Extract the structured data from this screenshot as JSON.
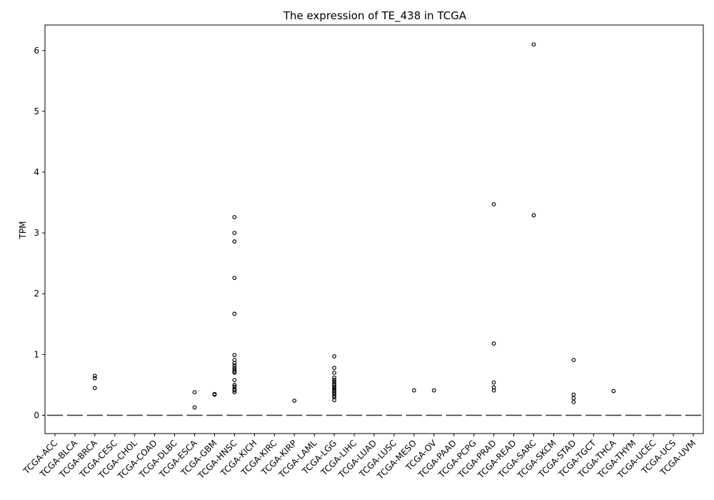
{
  "chart_data": {
    "type": "box",
    "title": "The expression of TE_438 in TCGA",
    "xlabel": "",
    "ylabel": "TPM",
    "ylim": [
      -0.3,
      6.42
    ],
    "yticks": [
      0,
      1,
      2,
      3,
      4,
      5,
      6
    ],
    "categories": [
      "TCGA-ACC",
      "TCGA-BLCA",
      "TCGA-BRCA",
      "TCGA-CESC",
      "TCGA-CHOL",
      "TCGA-COAD",
      "TCGA-DLBC",
      "TCGA-ESCA",
      "TCGA-GBM",
      "TCGA-HNSC",
      "TCGA-KICH",
      "TCGA-KIRC",
      "TCGA-KIRP",
      "TCGA-LAML",
      "TCGA-LGG",
      "TCGA-LIHC",
      "TCGA-LUAD",
      "TCGA-LUSC",
      "TCGA-MESO",
      "TCGA-OV",
      "TCGA-PAAD",
      "TCGA-PCPG",
      "TCGA-PRAD",
      "TCGA-READ",
      "TCGA-SARC",
      "TCGA-SKCM",
      "TCGA-STAD",
      "TCGA-TGCT",
      "TCGA-THCA",
      "TCGA-THYM",
      "TCGA-UCEC",
      "TCGA-UCS",
      "TCGA-UVM"
    ],
    "median": [
      0,
      0,
      0,
      0,
      0,
      0,
      0,
      0,
      0,
      0,
      0,
      0,
      0,
      0,
      0,
      0,
      0,
      0,
      0,
      0,
      0,
      0,
      0,
      0,
      0,
      0,
      0,
      0,
      0,
      0,
      0,
      0,
      0
    ],
    "outliers": [
      [],
      [],
      [
        0.65,
        0.61,
        0.45
      ],
      [],
      [],
      [],
      [],
      [
        0.38,
        0.13
      ],
      [
        0.35,
        0.34
      ],
      [
        3.26,
        3.0,
        2.86,
        2.26,
        1.67,
        0.99,
        0.91,
        0.86,
        0.82,
        0.78,
        0.75,
        0.72,
        0.7,
        0.58,
        0.5,
        0.47,
        0.43,
        0.41,
        0.38
      ],
      [],
      [],
      [
        0.24
      ],
      [],
      [
        0.97,
        0.78,
        0.7,
        0.62,
        0.58,
        0.55,
        0.52,
        0.5,
        0.47,
        0.45,
        0.43,
        0.41,
        0.38,
        0.35,
        0.32,
        0.3,
        0.25
      ],
      [],
      [],
      [],
      [
        0.41
      ],
      [
        0.41
      ],
      [],
      [],
      [
        3.47,
        1.18,
        0.54,
        0.46,
        0.41
      ],
      [],
      [
        6.1,
        3.29
      ],
      [],
      [
        0.91,
        0.34,
        0.28,
        0.22
      ],
      [],
      [
        0.4
      ],
      [],
      [],
      [],
      []
    ],
    "grid": false,
    "legend": "none",
    "colors": {
      "box_line": "#3d3d3d",
      "outlier_edge": "#000000",
      "axes": "#000000"
    }
  }
}
